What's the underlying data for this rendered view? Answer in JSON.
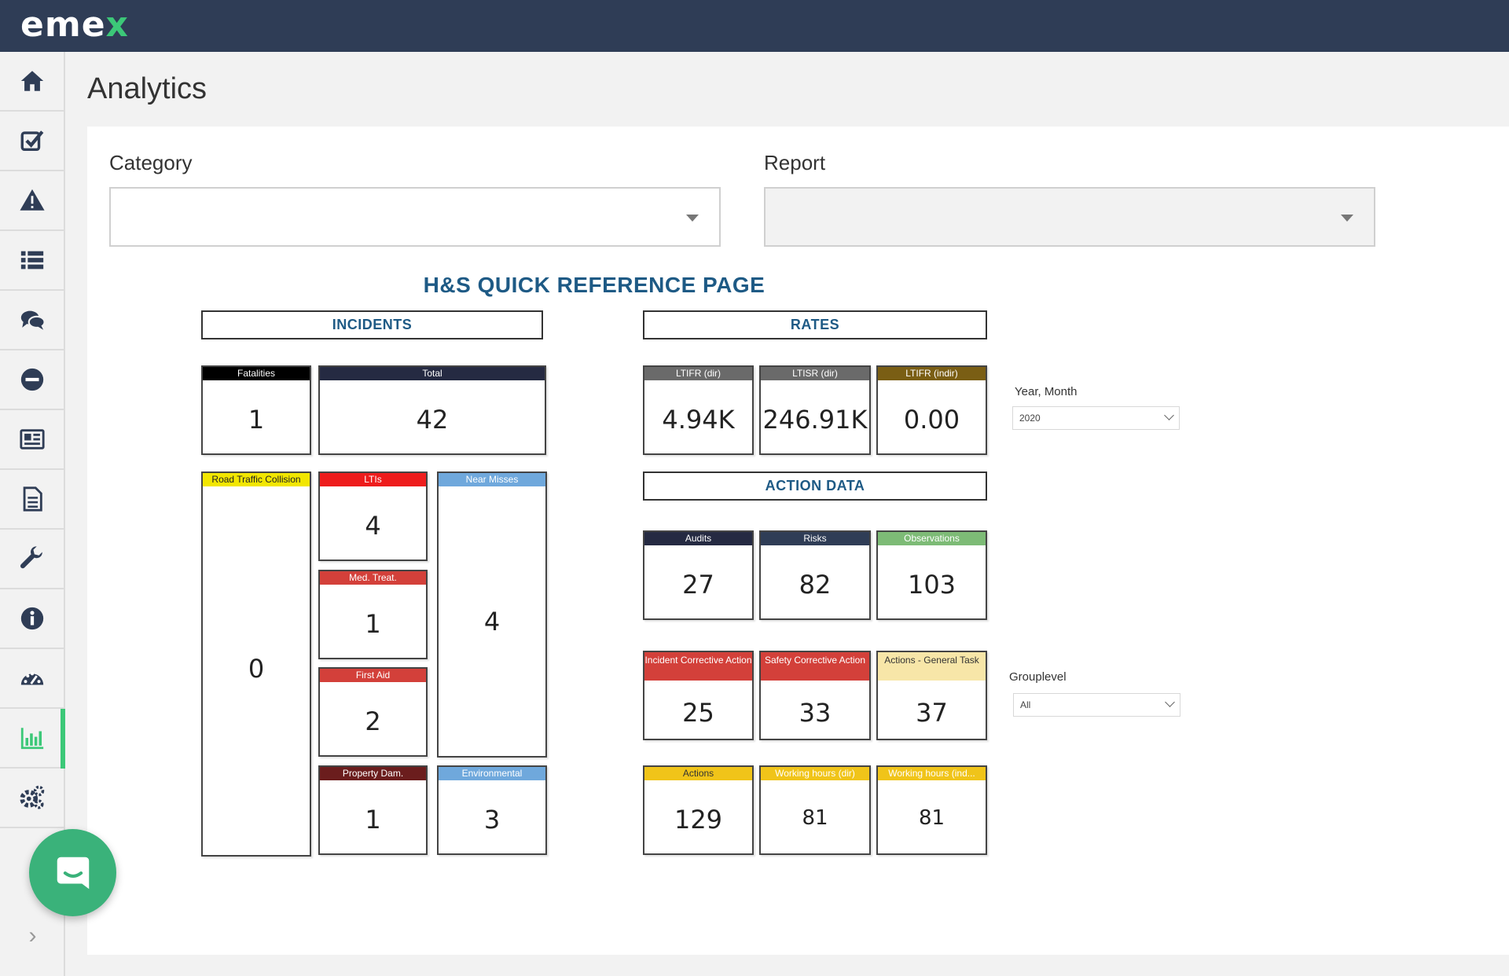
{
  "app": {
    "logo_main": "eme",
    "logo_x": "x"
  },
  "page": {
    "title": "Analytics"
  },
  "filters": {
    "category_label": "Category",
    "category_value": "",
    "report_label": "Report",
    "report_value": ""
  },
  "sidebar": {
    "items": [
      {
        "icon": "home-icon"
      },
      {
        "icon": "checkbox-icon"
      },
      {
        "icon": "warning-icon"
      },
      {
        "icon": "list-icon"
      },
      {
        "icon": "chat-icon"
      },
      {
        "icon": "minus-circle-icon"
      },
      {
        "icon": "newspaper-icon"
      },
      {
        "icon": "document-icon"
      },
      {
        "icon": "wrench-icon"
      },
      {
        "icon": "info-icon"
      },
      {
        "icon": "dashboard-icon"
      },
      {
        "icon": "bar-chart-icon",
        "active": true
      },
      {
        "icon": "gears-icon"
      }
    ],
    "accent": "#3cc878"
  },
  "report": {
    "title": "H&S QUICK REFERENCE PAGE",
    "sections": {
      "incidents": "INCIDENTS",
      "rates": "RATES",
      "action_data": "ACTION DATA"
    },
    "tiles": {
      "fatalities": {
        "label": "Fatalities",
        "value": "1",
        "color": "#000000"
      },
      "total": {
        "label": "Total",
        "value": "42",
        "color": "#252a42"
      },
      "rtc": {
        "label": "Road Traffic Collision",
        "value": "0",
        "color": "#f2e600"
      },
      "ltis": {
        "label": "LTIs",
        "value": "4",
        "color": "#ee1c1c"
      },
      "med_treat": {
        "label": "Med. Treat.",
        "value": "1",
        "color": "#d3403a"
      },
      "first_aid": {
        "label": "First Aid",
        "value": "2",
        "color": "#d3403a"
      },
      "property_dam": {
        "label": "Property Dam.",
        "value": "1",
        "color": "#6b1d1d"
      },
      "near_misses": {
        "label": "Near Misses",
        "value": "4",
        "color": "#6fa8dc"
      },
      "environmental": {
        "label": "Environmental",
        "value": "3",
        "color": "#6fa8dc"
      },
      "ltifr_dir": {
        "label": "LTIFR (dir)",
        "value": "4.94K",
        "color": "#6a6a6a"
      },
      "ltisr_dir": {
        "label": "LTISR (dir)",
        "value": "246.91K",
        "color": "#6a6a6a"
      },
      "ltifr_indir": {
        "label": "LTIFR (indir)",
        "value": "0.00",
        "color": "#7a5e14"
      },
      "audits": {
        "label": "Audits",
        "value": "27",
        "color": "#252a42"
      },
      "risks": {
        "label": "Risks",
        "value": "82",
        "color": "#2f3d56"
      },
      "observations": {
        "label": "Observations",
        "value": "103",
        "color": "#7dbb76"
      },
      "incident_corrective": {
        "label": "Incident Corrective Action",
        "value": "25",
        "color": "#d3403a"
      },
      "safety_corrective": {
        "label": "Safety Corrective Action",
        "value": "33",
        "color": "#d3403a"
      },
      "actions_general": {
        "label": "Actions - General Task",
        "value": "37",
        "color": "#f7e6a8"
      },
      "actions": {
        "label": "Actions",
        "value": "129",
        "color": "#f0c419"
      },
      "working_hours_dir": {
        "label": "Working hours (dir)",
        "value": "81",
        "color": "#f0c419"
      },
      "working_hours_ind": {
        "label": "Working hours (ind...",
        "value": "81",
        "color": "#f0c419"
      }
    },
    "slicers": {
      "year_month_label": "Year, Month",
      "year_month_value": "2020",
      "grouplevel_label": "Grouplevel",
      "grouplevel_value": "All"
    }
  }
}
